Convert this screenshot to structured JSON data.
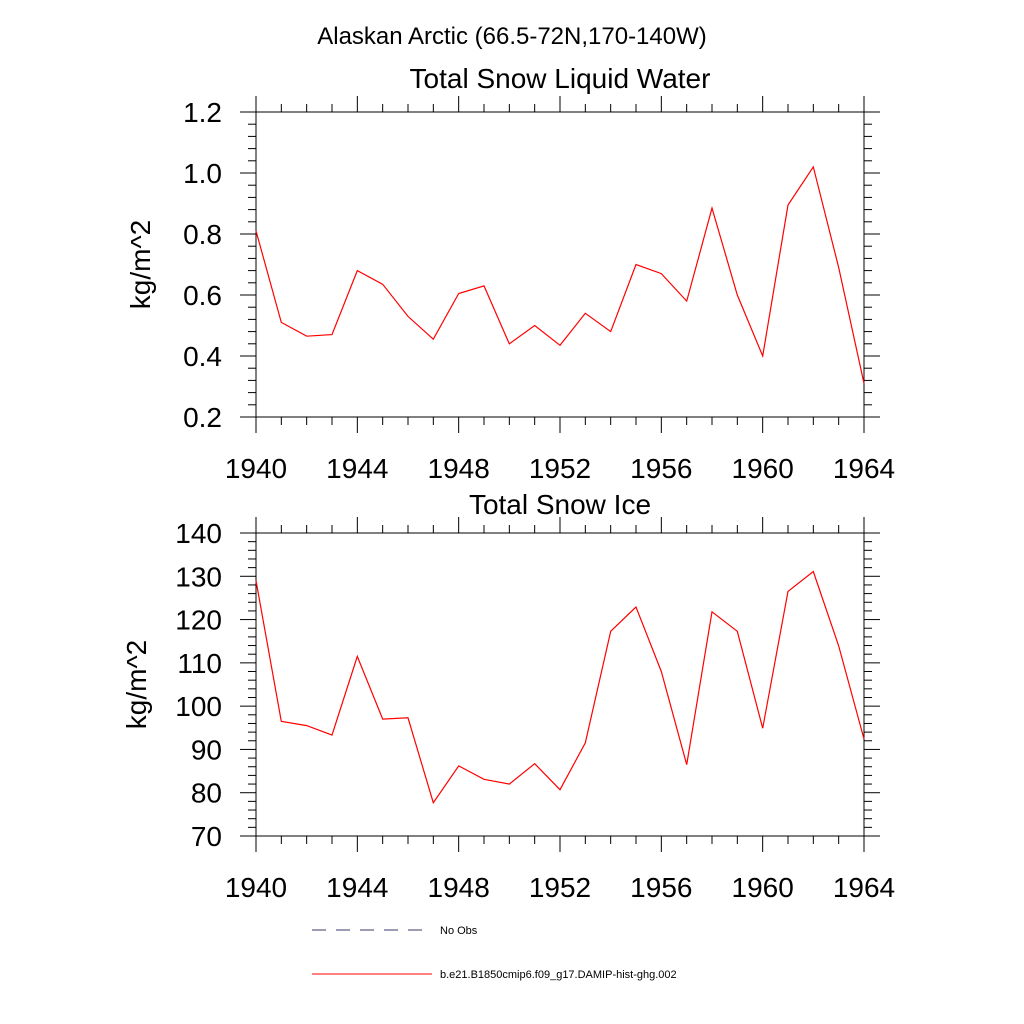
{
  "figure": {
    "title": "Alaskan Arctic (66.5-72N,170-140W)"
  },
  "legend": {
    "items": [
      {
        "label": "No Obs",
        "color": "#3a3a6a",
        "dash": "dashed"
      },
      {
        "label": "b.e21.B1850cmip6.f09_g17.DAMIP-hist-ghg.002",
        "color": "#ff0000",
        "dash": "solid"
      }
    ]
  },
  "chart_data": [
    {
      "type": "line",
      "title": "Total Snow Liquid Water",
      "ylabel": "kg/m^2",
      "xlabel": "",
      "xlim": [
        1940,
        1964
      ],
      "ylim": [
        0.2,
        1.2
      ],
      "xticks": [
        1940,
        1944,
        1948,
        1952,
        1956,
        1960,
        1964
      ],
      "yticks": [
        "0.2",
        "0.4",
        "0.6",
        "0.8",
        "1.0",
        "1.2"
      ],
      "series": [
        {
          "color": "#ff0000",
          "x": [
            1940,
            1941,
            1942,
            1943,
            1944,
            1945,
            1946,
            1947,
            1948,
            1949,
            1950,
            1951,
            1952,
            1953,
            1954,
            1955,
            1956,
            1957,
            1958,
            1959,
            1960,
            1961,
            1962,
            1963,
            1964
          ],
          "values": [
            0.81,
            0.51,
            0.465,
            0.47,
            0.68,
            0.635,
            0.53,
            0.455,
            0.605,
            0.63,
            0.44,
            0.5,
            0.435,
            0.54,
            0.48,
            0.7,
            0.67,
            0.58,
            0.885,
            0.6,
            0.4,
            0.895,
            1.02,
            0.69,
            0.31
          ]
        }
      ]
    },
    {
      "type": "line",
      "title": "Total Snow Ice",
      "ylabel": "kg/m^2",
      "xlabel": "",
      "xlim": [
        1940,
        1964
      ],
      "ylim": [
        70,
        140
      ],
      "xticks": [
        1940,
        1944,
        1948,
        1952,
        1956,
        1960,
        1964
      ],
      "yticks": [
        "70",
        "80",
        "90",
        "100",
        "110",
        "120",
        "130",
        "140"
      ],
      "series": [
        {
          "color": "#ff0000",
          "x": [
            1940,
            1941,
            1942,
            1943,
            1944,
            1945,
            1946,
            1947,
            1948,
            1949,
            1950,
            1951,
            1952,
            1953,
            1954,
            1955,
            1956,
            1957,
            1958,
            1959,
            1960,
            1961,
            1962,
            1963,
            1964
          ],
          "values": [
            129,
            96.5,
            95.5,
            93.3,
            111.5,
            97,
            97.3,
            77.7,
            86.2,
            83.1,
            82,
            86.7,
            80.7,
            91.5,
            117.3,
            122.9,
            108,
            86.5,
            121.8,
            117.3,
            94.9,
            126.5,
            131.1,
            113.9,
            92.4
          ]
        }
      ]
    }
  ]
}
